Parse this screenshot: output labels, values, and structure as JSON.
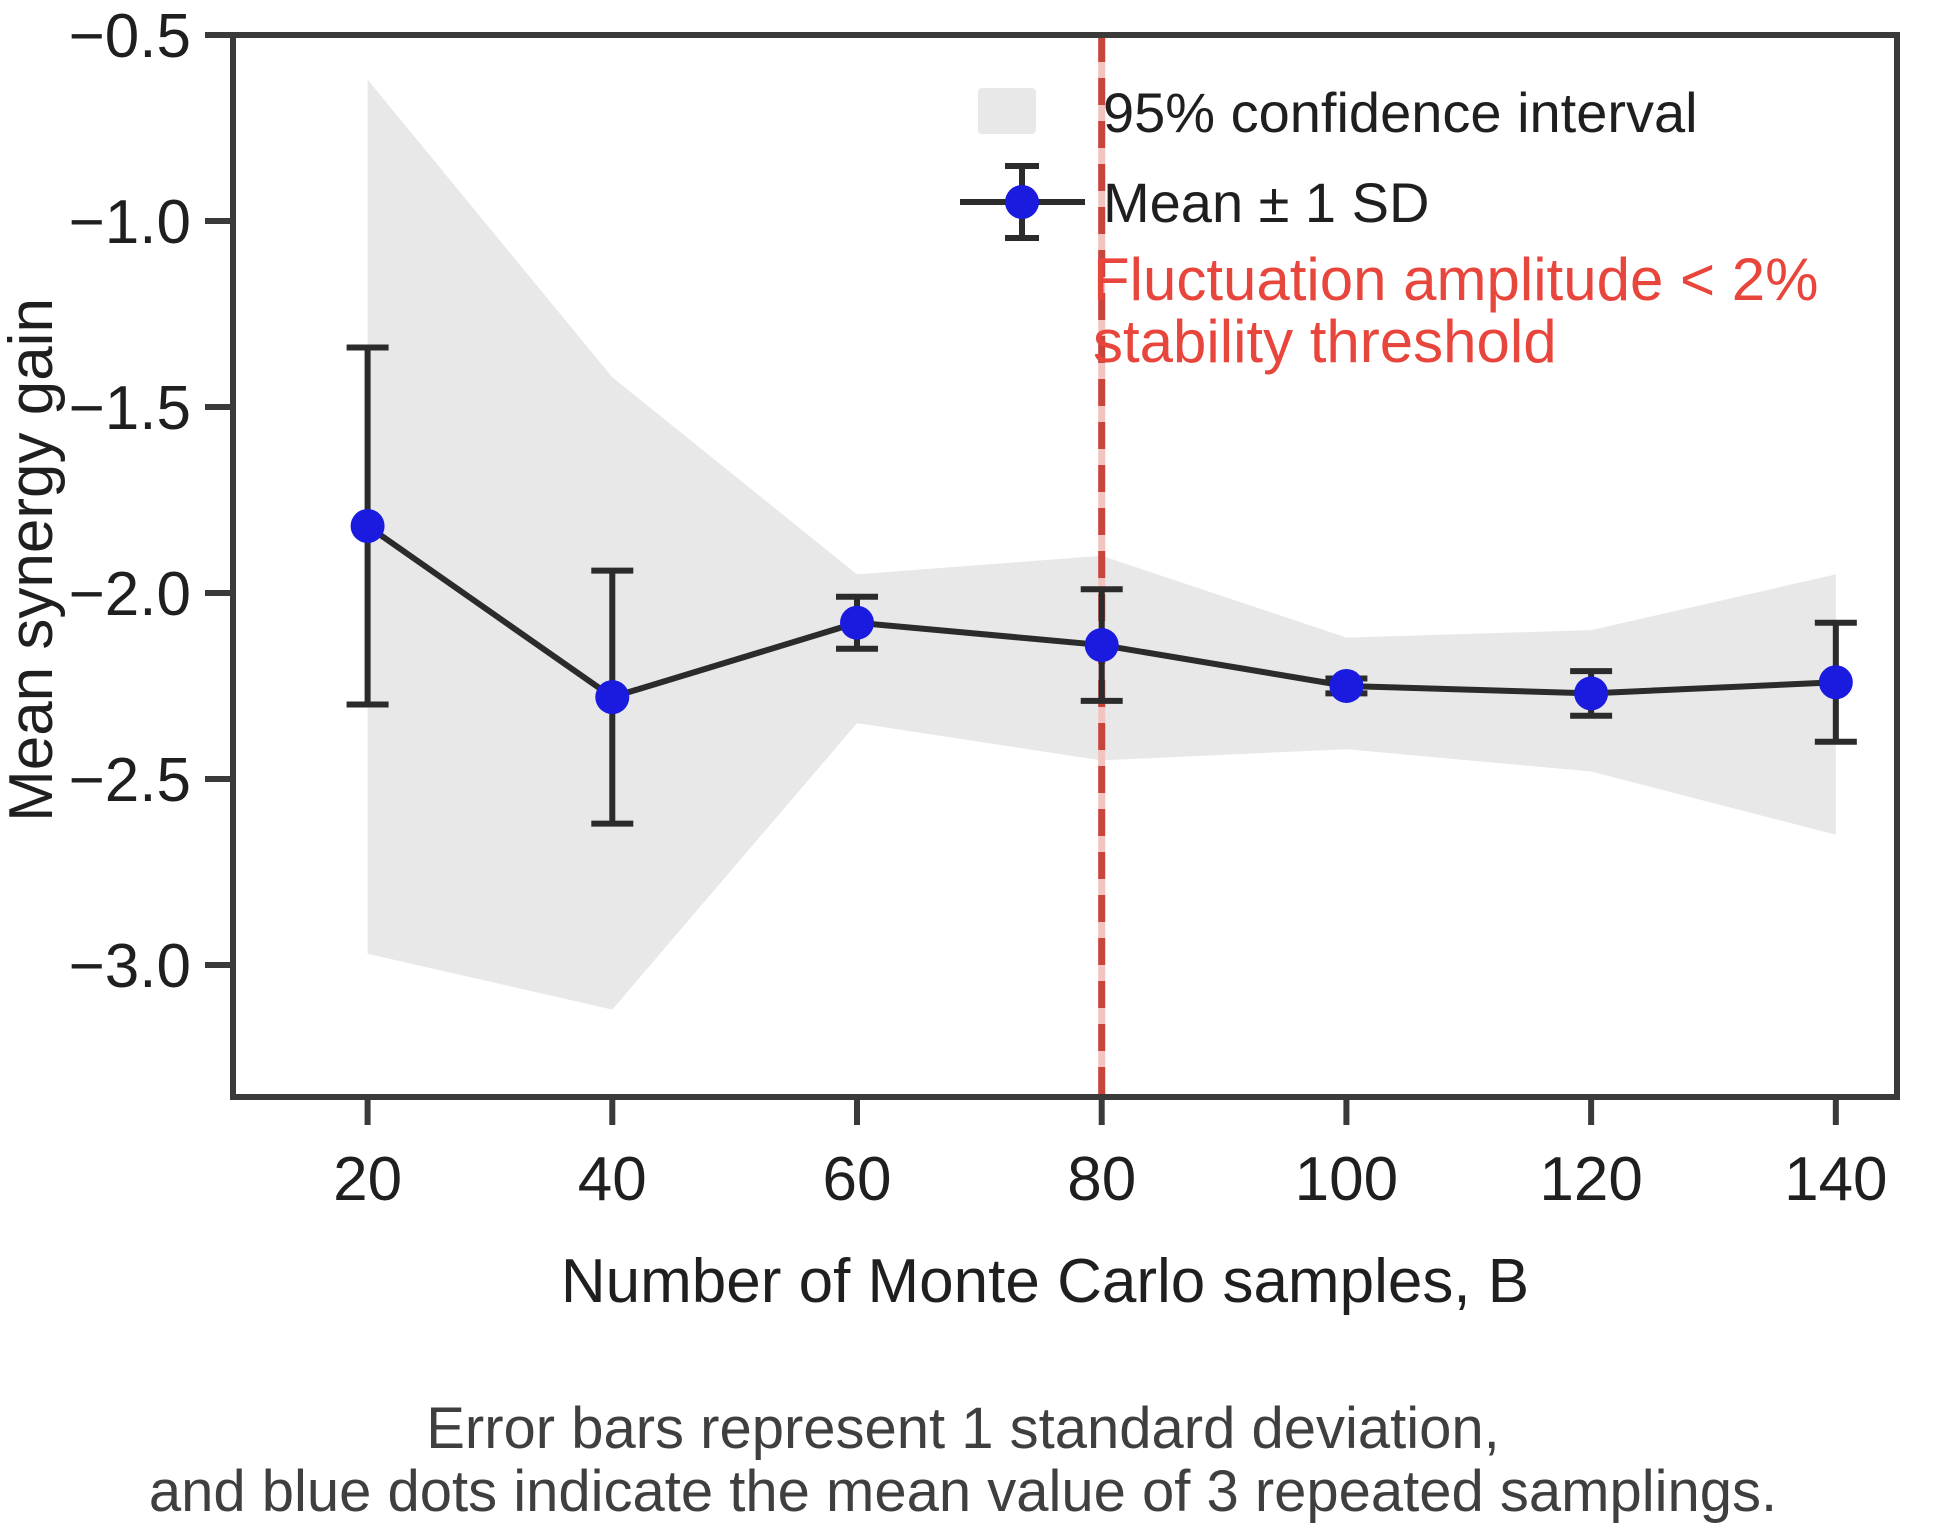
{
  "figure": {
    "x_axis_label": "Number of Monte Carlo samples, B",
    "y_axis_label": "Mean synergy gain"
  },
  "legend": {
    "ci_label": "95% confidence interval",
    "mean_label": "Mean ± 1 SD"
  },
  "annotation": {
    "line1": "Fluctuation amplitude < 2%",
    "line2": "stability threshold",
    "threshold_x": 80
  },
  "caption": {
    "line1": "Error bars represent 1 standard deviation,",
    "line2": "and blue dots indicate the mean value of 3 repeated samplings."
  },
  "colors": {
    "mean_marker": "#1b1be0",
    "line": "#2b2b2b",
    "ci_band": "#e8e8e8",
    "threshold_line": "#c8453c",
    "threshold_line_gap": "#f2c3bf",
    "threshold_text": "#e8463c",
    "axis": "#3a3a3a",
    "text": "#1f1f1f",
    "caption": "#3f3f3f"
  },
  "chart_data": {
    "type": "line",
    "x": [
      20,
      40,
      60,
      80,
      100,
      120,
      140
    ],
    "series": [
      {
        "name": "Mean ± 1 SD",
        "values": [
          -1.82,
          -2.28,
          -2.08,
          -2.14,
          -2.25,
          -2.27,
          -2.24
        ],
        "sd": [
          0.48,
          0.34,
          0.07,
          0.15,
          0.02,
          0.06,
          0.16
        ]
      }
    ],
    "ci_band": {
      "name": "95% confidence interval",
      "upper": [
        -0.62,
        -1.42,
        -1.95,
        -1.9,
        -2.12,
        -2.1,
        -1.95
      ],
      "lower": [
        -2.97,
        -3.12,
        -2.35,
        -2.45,
        -2.42,
        -2.48,
        -2.65
      ]
    },
    "vline": {
      "x": 80,
      "style": "dashed",
      "color": "#c8453c",
      "label": "Fluctuation amplitude < 2% stability threshold"
    },
    "title": "",
    "xlabel": "Number of Monte Carlo samples, B",
    "ylabel": "Mean synergy gain",
    "xlim": [
      9,
      145
    ],
    "ylim": [
      -3.355,
      -0.5
    ],
    "xticks": [
      20,
      40,
      60,
      80,
      100,
      120,
      140
    ],
    "yticks": [
      -0.5,
      -1.0,
      -1.5,
      -2.0,
      -2.5,
      -3.0
    ],
    "xtick_labels": [
      "20",
      "40",
      "60",
      "80",
      "100",
      "120",
      "140"
    ],
    "ytick_labels": [
      "−0.5",
      "−1.0",
      "−1.5",
      "−2.0",
      "−2.5",
      "−3.0"
    ],
    "grid": false,
    "legend_position": "upper-right-frameless"
  }
}
